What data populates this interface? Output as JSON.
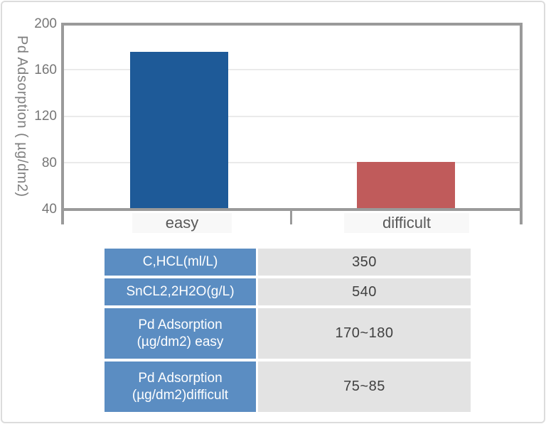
{
  "chart_data": {
    "type": "bar",
    "title": "",
    "categories": [
      "easy",
      "difficult"
    ],
    "values": [
      175,
      80
    ],
    "bar_colors": [
      "#1e5a98",
      "#c05b5b"
    ],
    "ylabel": "Pd Adsorption ( µg/dm2)",
    "xlabel": "",
    "ylim": [
      40,
      200
    ],
    "yticks": [
      "200",
      "160",
      "120",
      "80",
      "40"
    ],
    "grid": true,
    "legend": false
  },
  "table": {
    "rows": [
      {
        "label": "C,HCL(ml/L)",
        "value": "350"
      },
      {
        "label": "SnCL2,2H2O(g/L)",
        "value": "540"
      },
      {
        "label": "Pd Adsorption (µg/dm2) easy",
        "value": "170~180"
      },
      {
        "label": "Pd Adsorption (µg/dm2)difficult",
        "value": "75~85"
      }
    ],
    "header_bg": "#5b8dc2",
    "value_bg": "#e3e3e3"
  },
  "colors": {
    "axis_gray": "#9a9a9a",
    "gridline": "#eaeaea",
    "frame_border": "#dcdcdc",
    "category_label_bg": "#f8f8f8"
  }
}
